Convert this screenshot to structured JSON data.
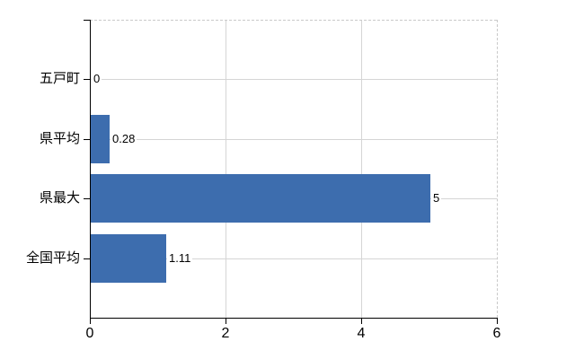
{
  "chart_data": {
    "type": "bar",
    "orientation": "horizontal",
    "title": "",
    "categories": [
      "五戸町",
      "県平均",
      "県最大",
      "全国平均"
    ],
    "values": [
      0,
      0.28,
      5,
      1.11
    ],
    "value_labels": [
      "0",
      "0.28",
      "5",
      "1.11"
    ],
    "x_axis": {
      "min": 0,
      "max": 6,
      "tick_values": [
        0,
        2,
        4,
        6
      ],
      "tick_labels": [
        "0",
        "2",
        "4",
        "6"
      ]
    },
    "grid": {
      "horizontal": true,
      "vertical": true
    },
    "legend": {
      "visible": false
    },
    "colors": {
      "bar": "#3d6dae",
      "axis": "#000000",
      "gridline": "#d5d5d5",
      "plot_border": "#c9c9c9",
      "text": "#000000",
      "background": "#ffffff"
    }
  }
}
